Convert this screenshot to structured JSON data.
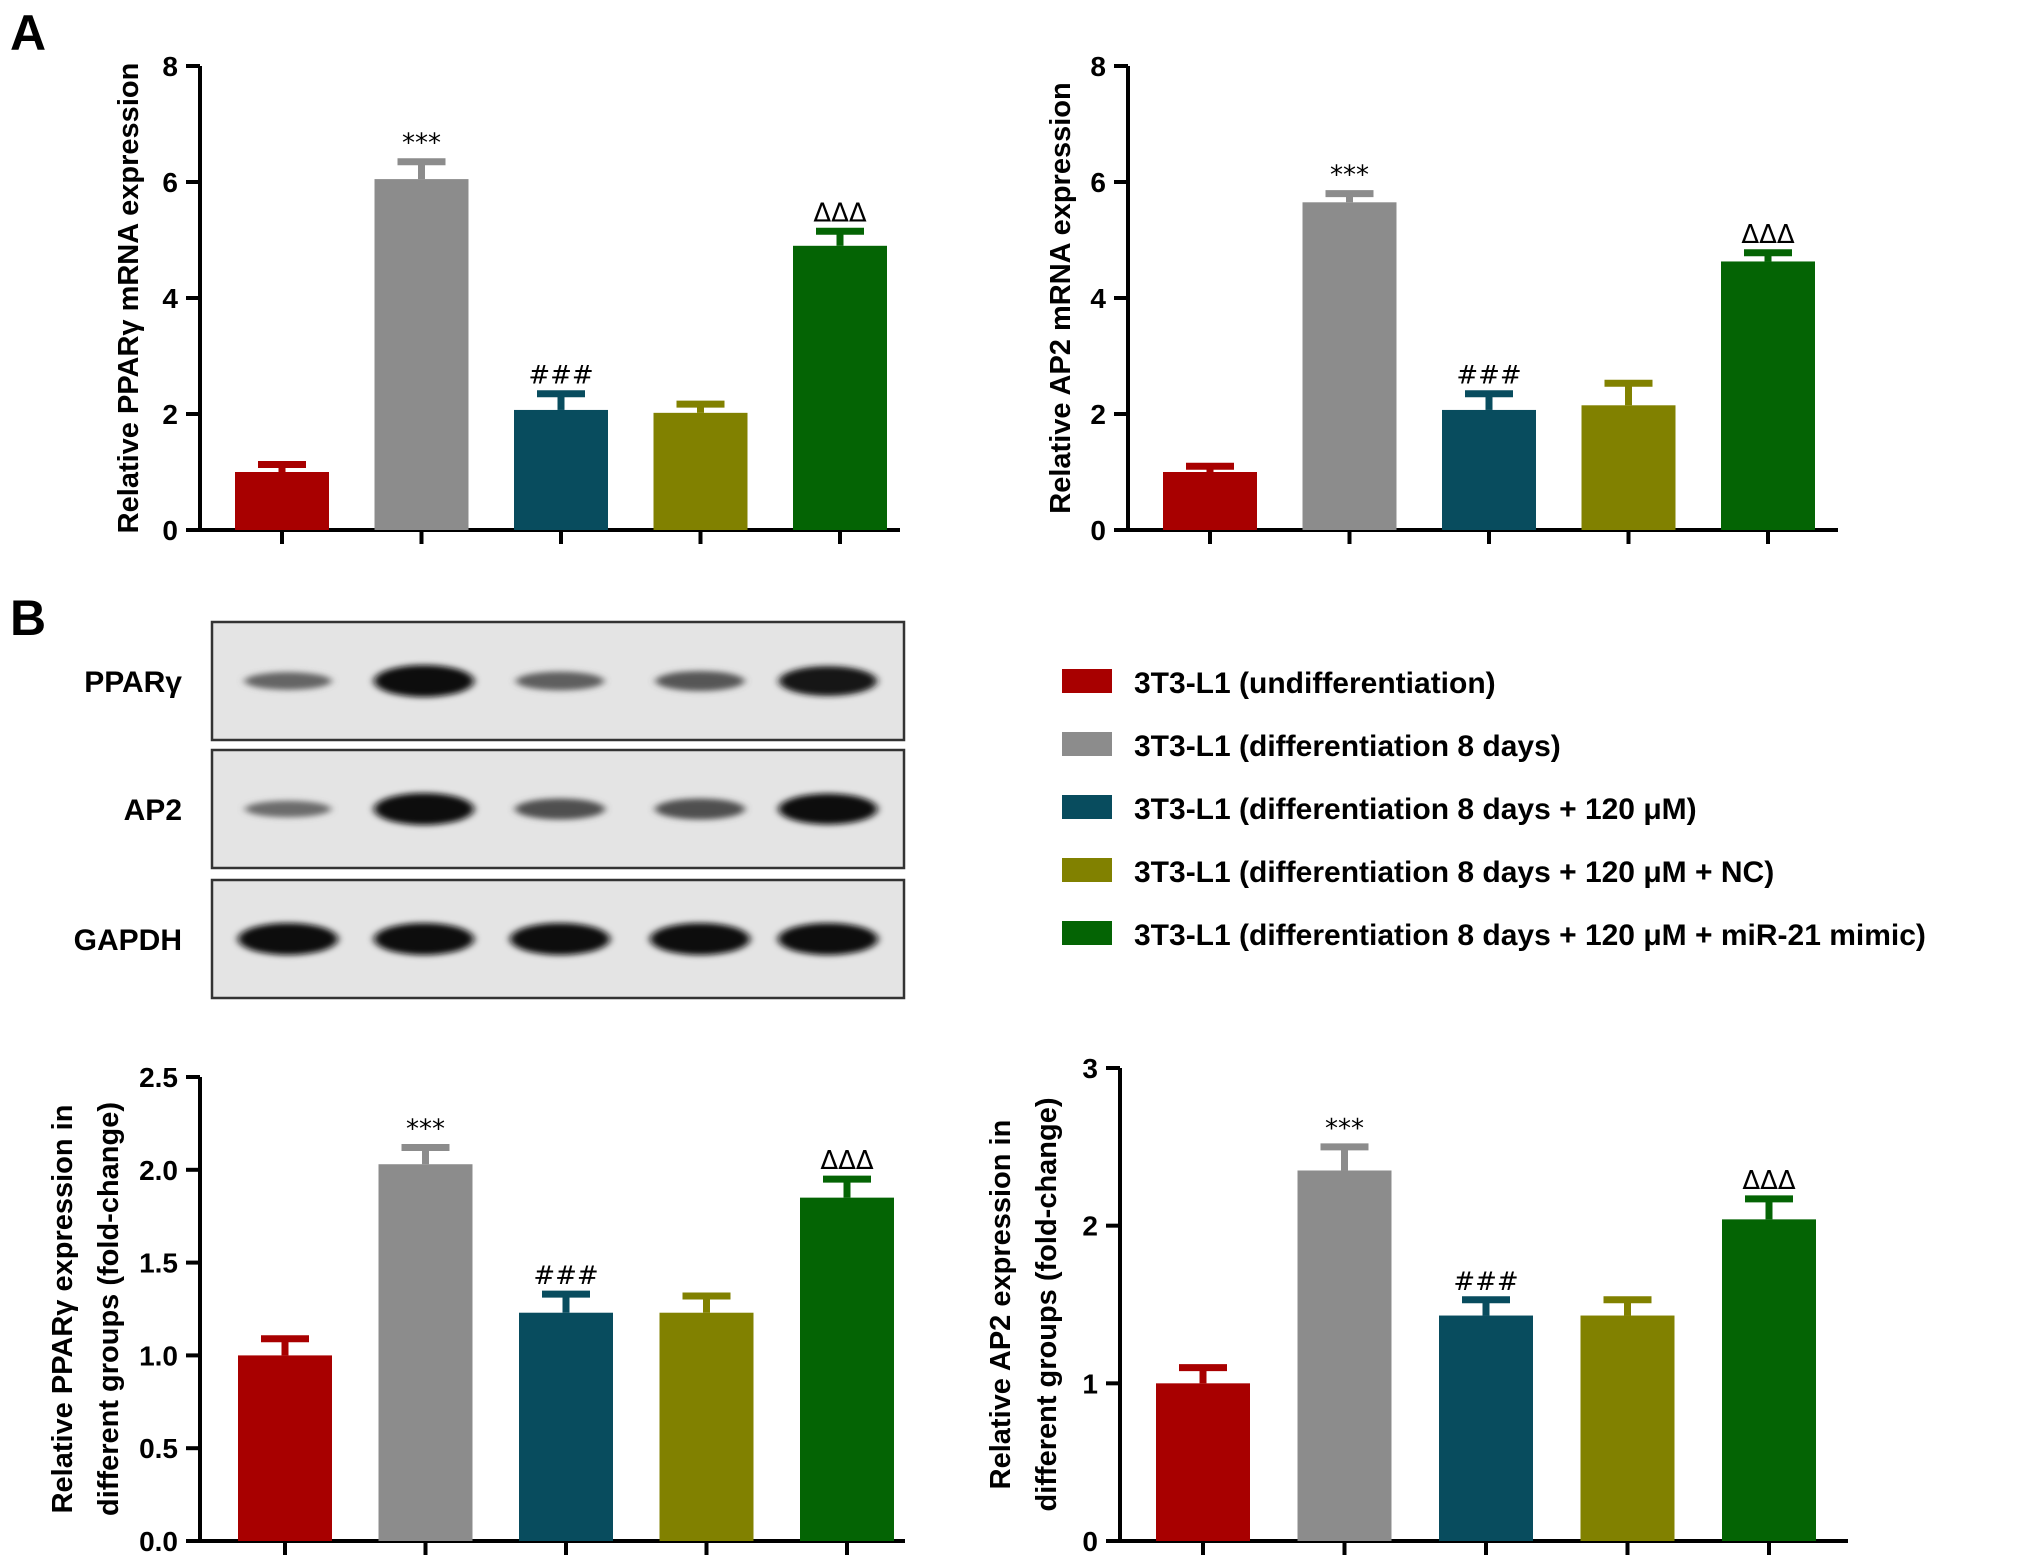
{
  "panels": {
    "a_label": "A",
    "b_label": "B"
  },
  "legend": {
    "entries": [
      {
        "label": "3T3-L1 (undifferentiation)",
        "color": "#a80000"
      },
      {
        "label": "3T3-L1 (differentiation 8 days)",
        "color": "#8c8c8c"
      },
      {
        "label": "3T3-L1 (differentiation 8 days + 120 μM)",
        "color": "#084c5e"
      },
      {
        "label": "3T3-L1 (differentiation 8 days + 120 μM + NC)",
        "color": "#818100"
      },
      {
        "label": "3T3-L1 (differentiation 8 days + 120 μM + miR-21 mimic)",
        "color": "#046404"
      }
    ]
  },
  "blot": {
    "rows": [
      {
        "label": "PPARγ",
        "intensities": [
          0.35,
          1.0,
          0.4,
          0.45,
          0.9
        ]
      },
      {
        "label": "AP2",
        "intensities": [
          0.3,
          1.0,
          0.5,
          0.5,
          0.95
        ]
      },
      {
        "label": "GAPDH",
        "intensities": [
          1.0,
          1.0,
          1.0,
          1.0,
          1.0
        ]
      }
    ]
  },
  "chart_data": [
    {
      "type": "bar",
      "panel": "A",
      "ylabel": [
        "Relative PPARγ mRNA expression"
      ],
      "ylim": [
        0,
        8
      ],
      "yticks": [
        "0",
        "2",
        "4",
        "6",
        "8"
      ],
      "values": [
        1.0,
        6.05,
        2.07,
        2.02,
        4.9
      ],
      "errors": [
        0.13,
        0.3,
        0.28,
        0.15,
        0.25
      ],
      "annotations": [
        "",
        "***",
        "###",
        "",
        "ΔΔΔ"
      ]
    },
    {
      "type": "bar",
      "panel": "A",
      "ylabel": [
        "Relative AP2 mRNA expression"
      ],
      "ylim": [
        0,
        8
      ],
      "yticks": [
        "0",
        "2",
        "4",
        "6",
        "8"
      ],
      "values": [
        1.0,
        5.65,
        2.07,
        2.15,
        4.63
      ],
      "errors": [
        0.1,
        0.15,
        0.28,
        0.38,
        0.15
      ],
      "annotations": [
        "",
        "***",
        "###",
        "",
        "ΔΔΔ"
      ]
    },
    {
      "type": "bar",
      "panel": "B",
      "ylabel": [
        "Relative PPARγ expression in",
        "different groups (fold-change)"
      ],
      "ylim": [
        0,
        2.5
      ],
      "yticks": [
        "0.0",
        "0.5",
        "1.0",
        "1.5",
        "2.0",
        "2.5"
      ],
      "values": [
        1.0,
        2.03,
        1.23,
        1.23,
        1.85
      ],
      "errors": [
        0.09,
        0.09,
        0.1,
        0.09,
        0.1
      ],
      "annotations": [
        "",
        "***",
        "###",
        "",
        "ΔΔΔ"
      ]
    },
    {
      "type": "bar",
      "panel": "B",
      "ylabel": [
        "Relative AP2 expression in",
        "different groups (fold-change)"
      ],
      "ylim": [
        0,
        3
      ],
      "yticks": [
        "0",
        "1",
        "2",
        "3"
      ],
      "values": [
        1.0,
        2.35,
        1.43,
        1.43,
        2.04
      ],
      "errors": [
        0.1,
        0.15,
        0.1,
        0.1,
        0.13
      ],
      "annotations": [
        "",
        "***",
        "###",
        "",
        "ΔΔΔ"
      ]
    }
  ]
}
